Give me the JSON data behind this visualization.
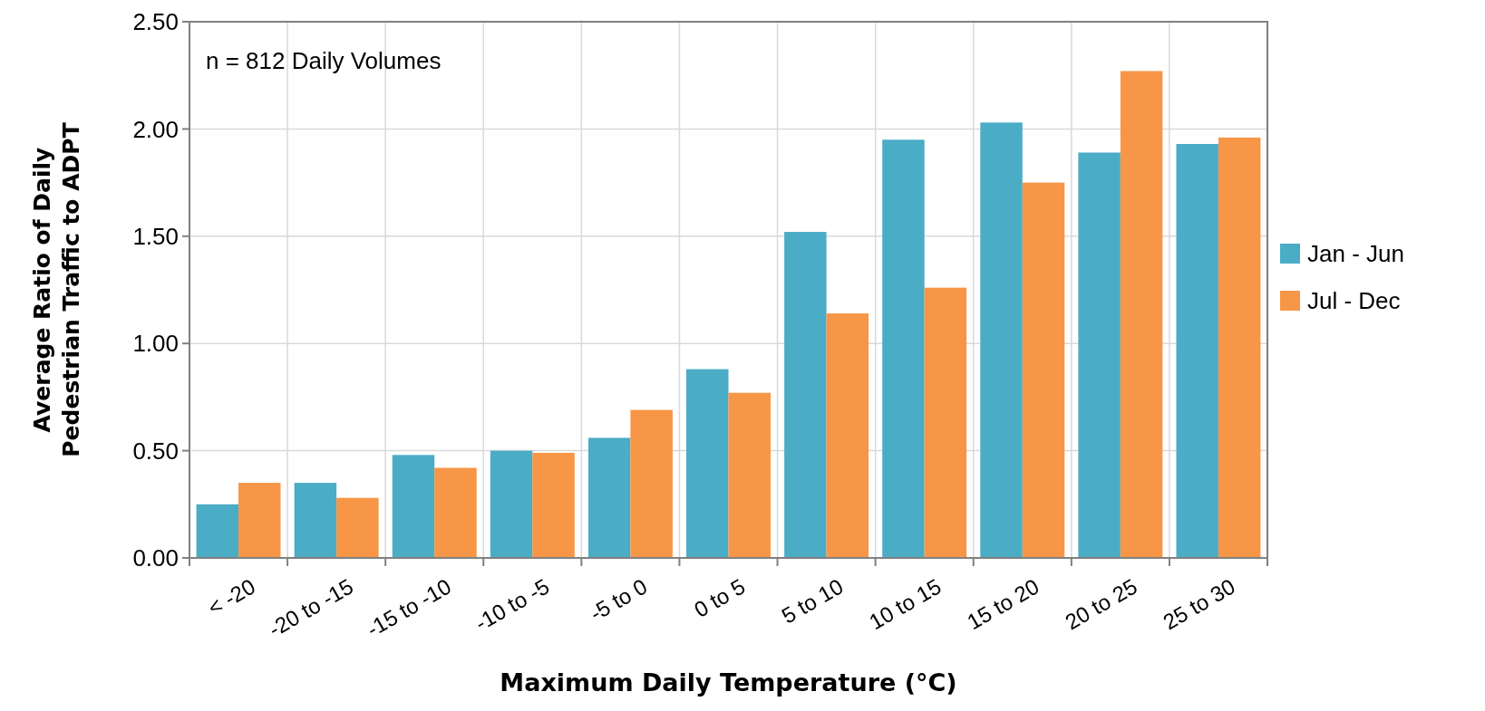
{
  "chart_data": {
    "type": "bar",
    "xlabel": "Maximum Daily Temperature (°C)",
    "ylabel": "Average Ratio of Daily Pedestrian Traffic to ADPT",
    "annotations": [
      "n = 812 Daily Volumes"
    ],
    "categories": [
      "< -20",
      "-20 to -15",
      "-15 to -10",
      "-10 to -5",
      "-5 to 0",
      "0 to 5",
      "5 to 10",
      "10 to 15",
      "15 to 20",
      "20 to 25",
      "25 to 30"
    ],
    "series": [
      {
        "name": "Jan - Jun",
        "color": "#4bacc6",
        "values": [
          0.25,
          0.35,
          0.48,
          0.5,
          0.56,
          0.88,
          1.52,
          1.95,
          2.03,
          1.89,
          1.93
        ]
      },
      {
        "name": "Jul - Dec",
        "color": "#f79646",
        "values": [
          0.35,
          0.28,
          0.42,
          0.49,
          0.69,
          0.77,
          1.14,
          1.26,
          1.75,
          2.27,
          1.96
        ]
      }
    ],
    "ylim": [
      0,
      2.5
    ],
    "yticks": [
      {
        "value": 0,
        "label": "0.00"
      },
      {
        "value": 0.5,
        "label": "0.50"
      },
      {
        "value": 1,
        "label": "1.00"
      },
      {
        "value": 1.5,
        "label": "1.50"
      },
      {
        "value": 2,
        "label": "2.00"
      },
      {
        "value": 2.5,
        "label": "2.50"
      }
    ],
    "grid": true,
    "legend": "right"
  }
}
